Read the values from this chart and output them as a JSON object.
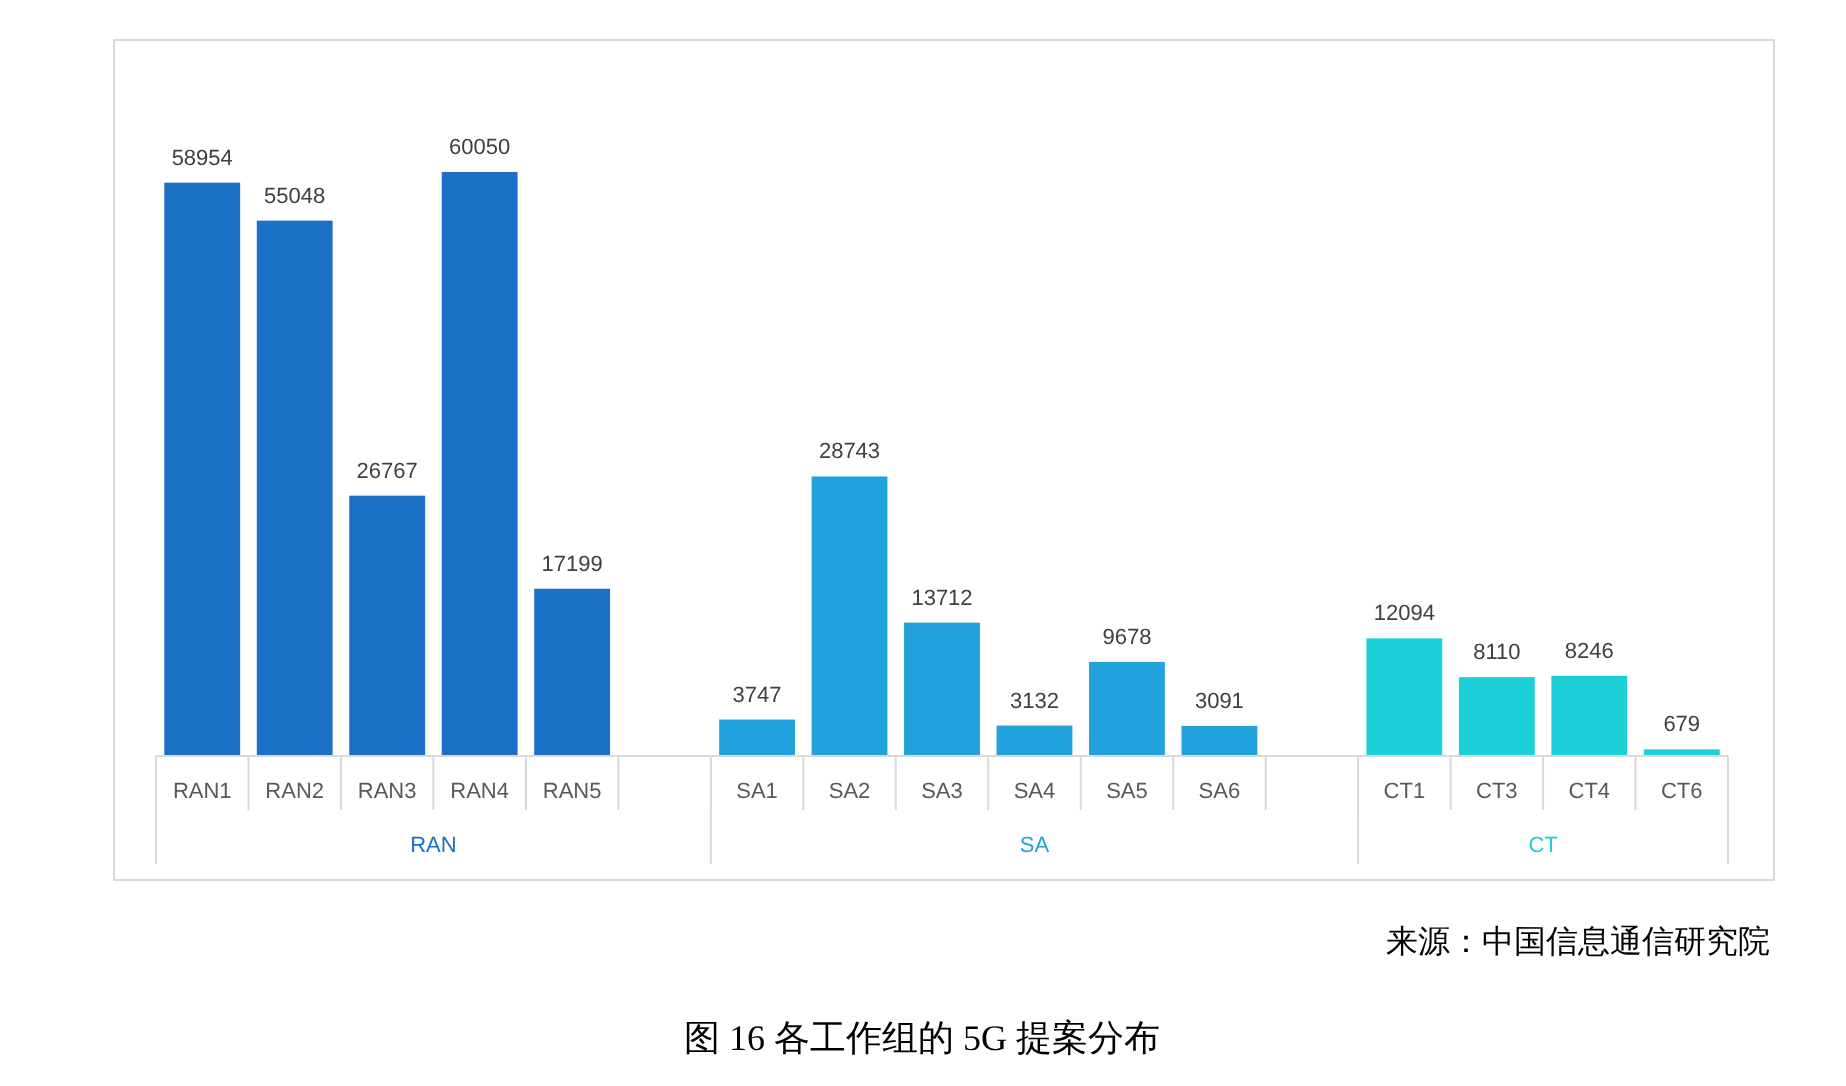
{
  "chart_data": {
    "type": "bar",
    "title": "图 16 各工作组的 5G 提案分布",
    "categories": [
      "RAN1",
      "RAN2",
      "RAN3",
      "RAN4",
      "RAN5",
      null,
      "SA1",
      "SA2",
      "SA3",
      "SA4",
      "SA5",
      "SA6",
      null,
      "CT1",
      "CT3",
      "CT4",
      "CT6"
    ],
    "series": [
      {
        "name": "RAN",
        "color": "#1a6fc7",
        "values": [
          58954,
          55048,
          26767,
          60050,
          17199,
          null,
          null,
          null,
          null,
          null,
          null,
          null,
          null,
          null,
          null,
          null,
          null
        ]
      },
      {
        "name": "SA",
        "color": "#22a2dc",
        "values": [
          null,
          null,
          null,
          null,
          null,
          null,
          3747,
          28743,
          13712,
          3132,
          9678,
          3091,
          null,
          null,
          null,
          null,
          null
        ]
      },
      {
        "name": "CT",
        "color": "#1ccfd8",
        "values": [
          null,
          null,
          null,
          null,
          null,
          null,
          null,
          null,
          null,
          null,
          null,
          null,
          null,
          12094,
          8110,
          8246,
          679
        ]
      }
    ],
    "data_labels": true,
    "annotations": [
      "来源：中国信息通信研究院"
    ]
  }
}
